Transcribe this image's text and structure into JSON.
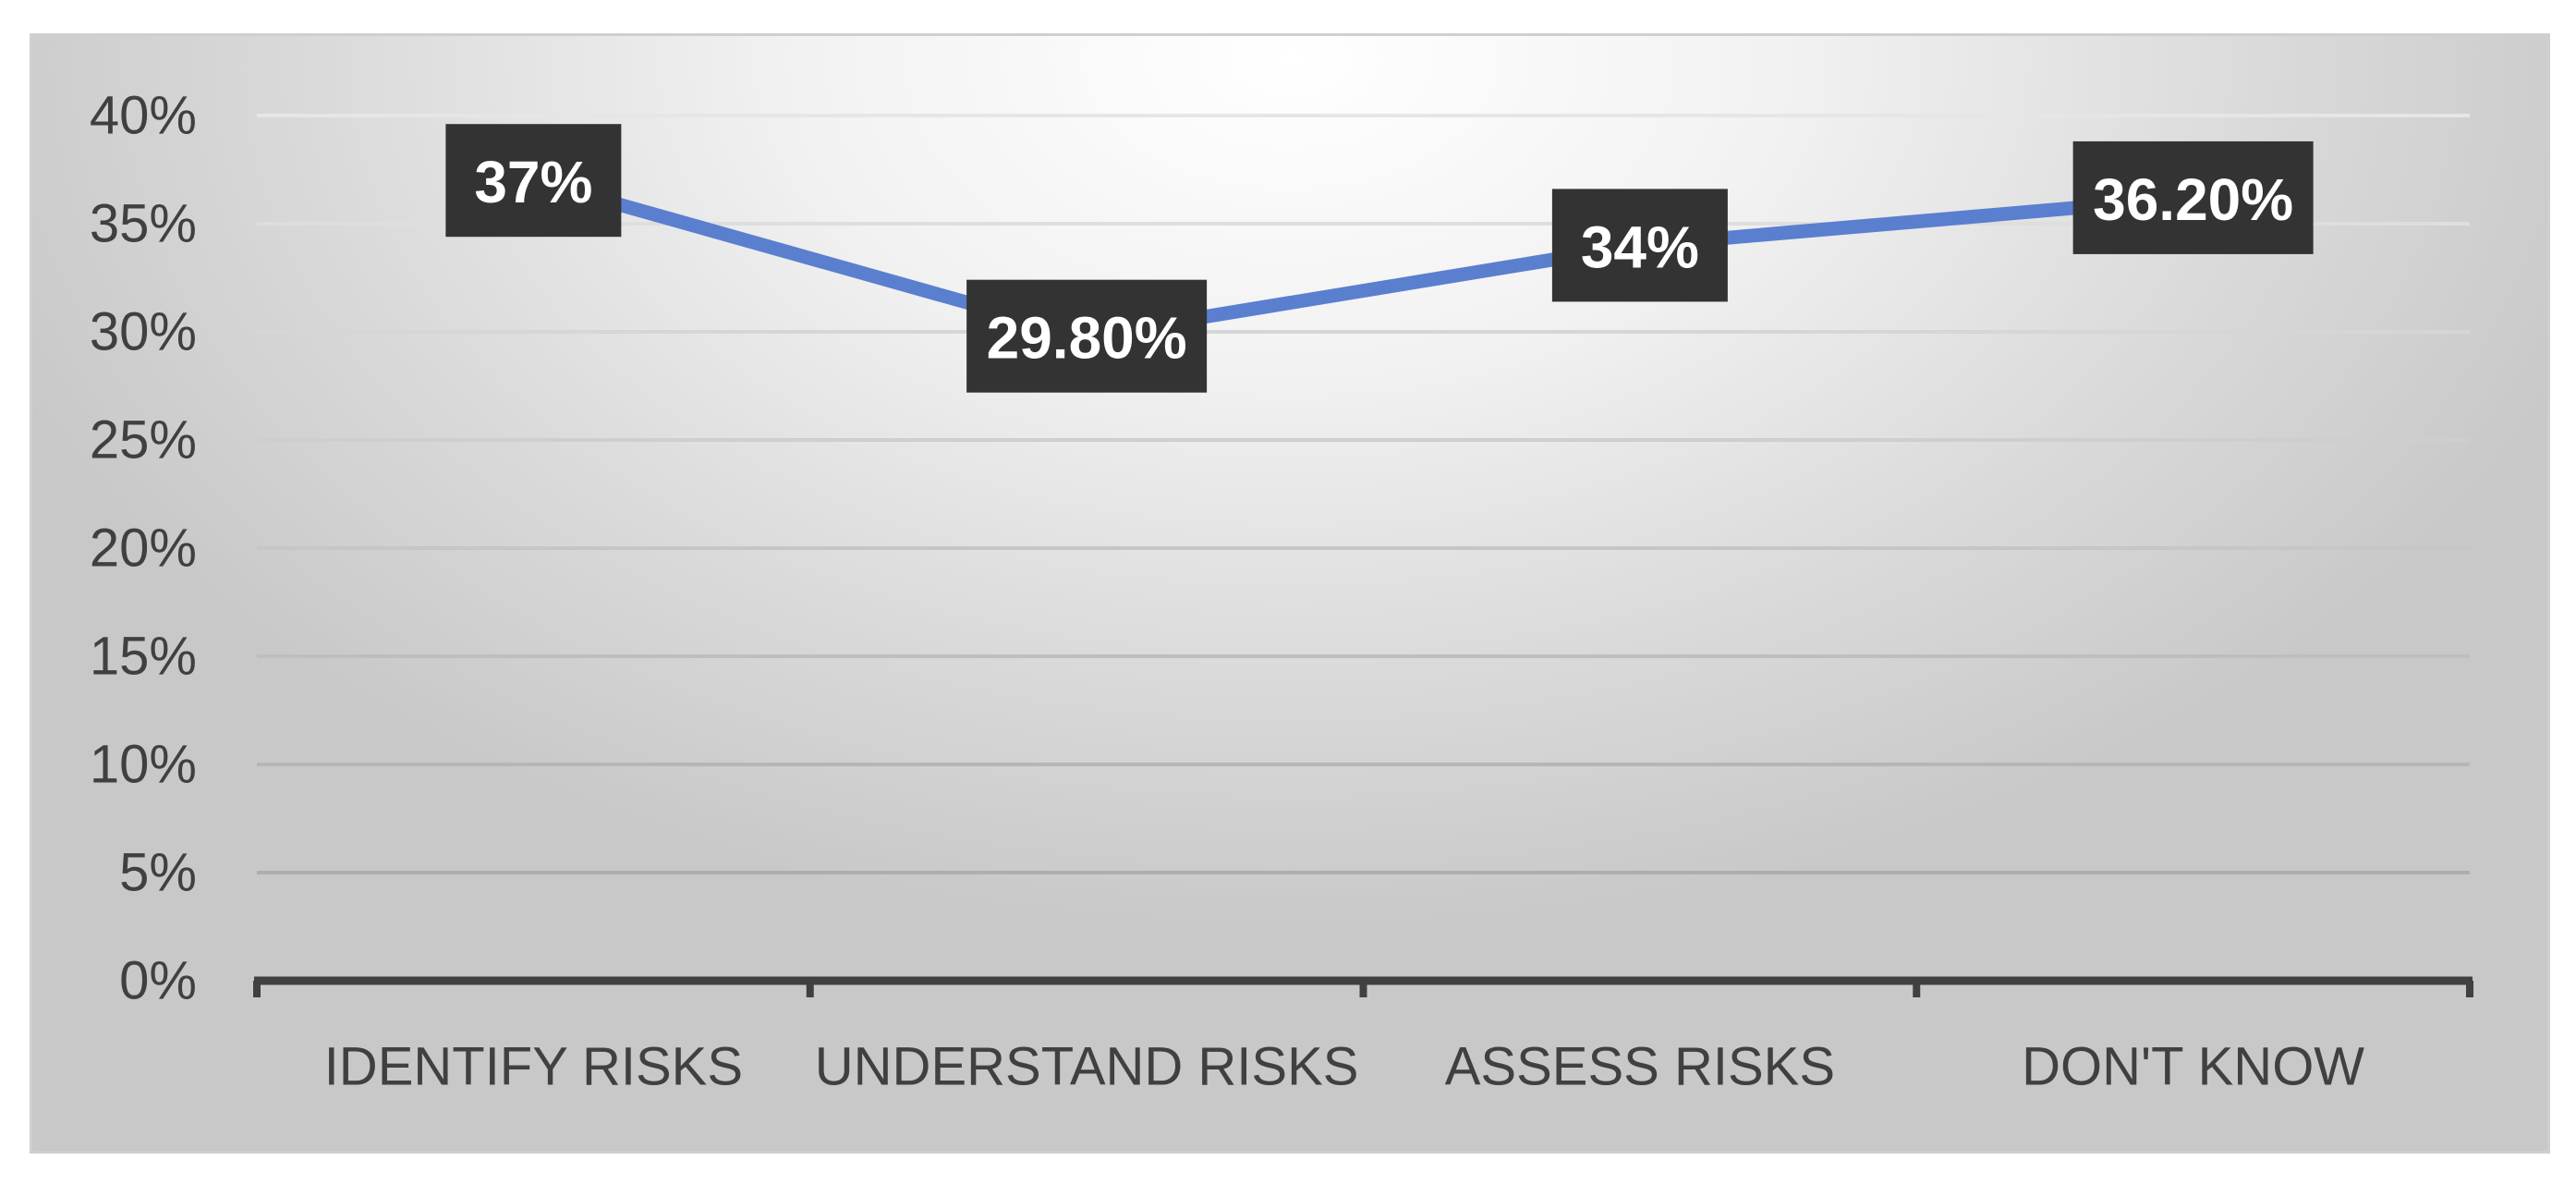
{
  "colors": {
    "series_line": "#5B7FCF",
    "axis_line": "#404040",
    "label_box": "#333333",
    "label_text": "#FFFFFF",
    "tick_text": "#404040",
    "gridline_light": "#e6e6e6",
    "gridline_dark": "#a6a6a6"
  },
  "chart_data": {
    "type": "line",
    "title": "",
    "xlabel": "",
    "ylabel": "",
    "categories": [
      "IDENTIFY RISKS",
      "UNDERSTAND RISKS",
      "ASSESS RISKS",
      "DON'T KNOW"
    ],
    "series": [
      {
        "values": [
          37,
          29.8,
          34,
          36.2
        ],
        "data_labels": [
          "37%",
          "29.80%",
          "34%",
          "36.20%"
        ]
      }
    ],
    "ylim": [
      0,
      40
    ],
    "y_ticks": [
      0,
      5,
      10,
      15,
      20,
      25,
      30,
      35,
      40
    ],
    "y_tick_labels": [
      "0%",
      "5%",
      "10%",
      "15%",
      "20%",
      "25%",
      "30%",
      "35%",
      "40%"
    ],
    "grid": true,
    "legend": "none"
  }
}
